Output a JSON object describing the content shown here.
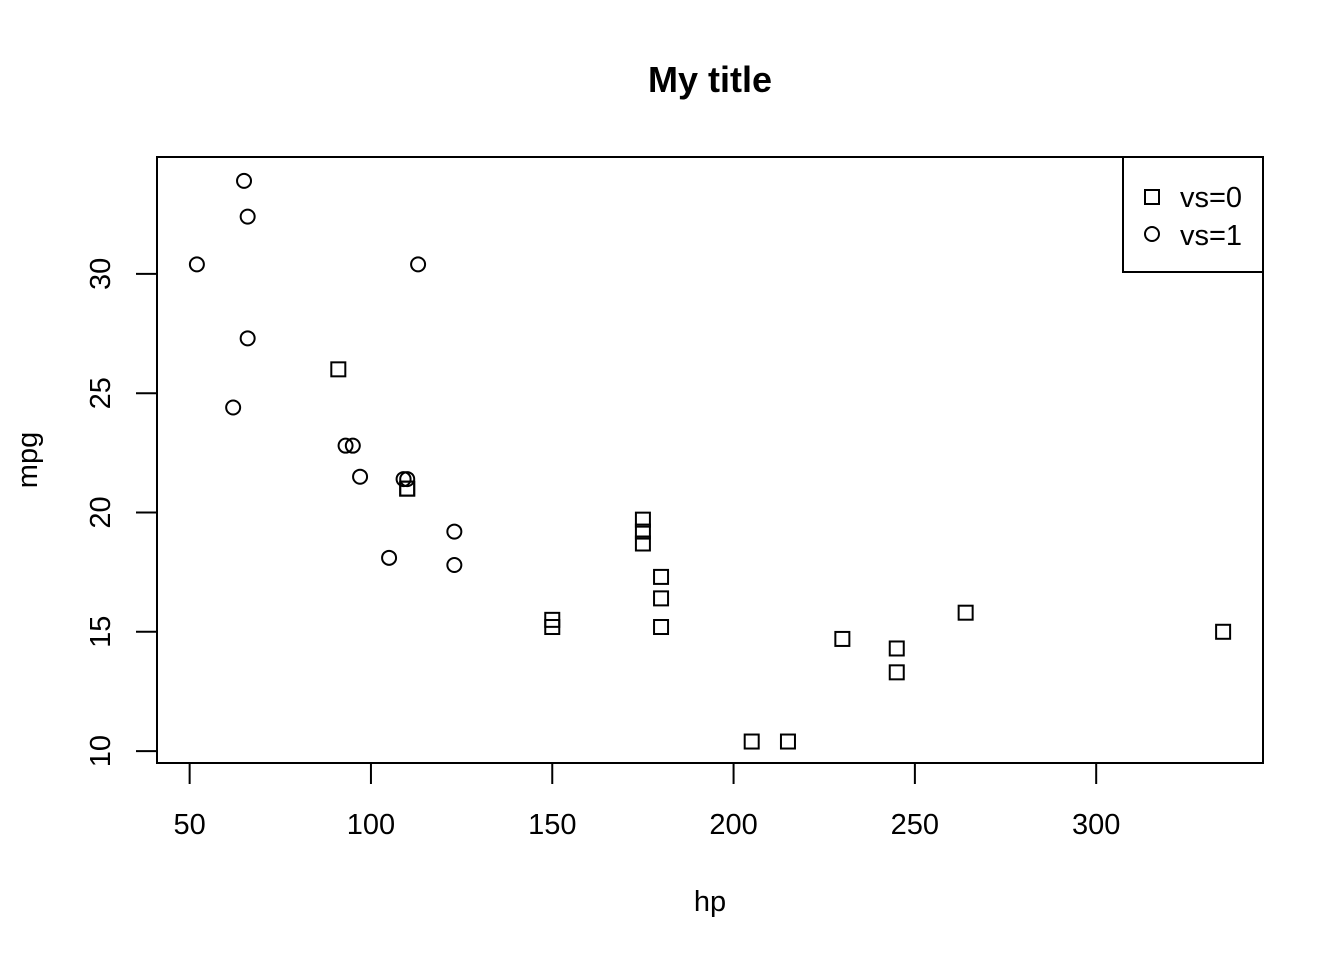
{
  "chart_data": {
    "type": "scatter",
    "title": "My title",
    "xlabel": "hp",
    "ylabel": "mpg",
    "xlim": [
      41,
      346
    ],
    "ylim": [
      9.5,
      34.9
    ],
    "x_ticks": [
      50,
      100,
      150,
      200,
      250,
      300
    ],
    "y_ticks": [
      10,
      15,
      20,
      25,
      30
    ],
    "legend": {
      "placement": "top-right",
      "entries": [
        {
          "label": "vs=0",
          "marker": "square"
        },
        {
          "label": "vs=1",
          "marker": "circle"
        }
      ]
    },
    "series": [
      {
        "name": "vs=0",
        "marker": "square",
        "points": [
          {
            "x": 91,
            "y": 26.0
          },
          {
            "x": 110,
            "y": 21.0
          },
          {
            "x": 110,
            "y": 21.0
          },
          {
            "x": 150,
            "y": 15.5
          },
          {
            "x": 150,
            "y": 15.2
          },
          {
            "x": 175,
            "y": 19.7
          },
          {
            "x": 175,
            "y": 19.2
          },
          {
            "x": 175,
            "y": 18.7
          },
          {
            "x": 180,
            "y": 17.3
          },
          {
            "x": 180,
            "y": 16.4
          },
          {
            "x": 180,
            "y": 15.2
          },
          {
            "x": 205,
            "y": 10.4
          },
          {
            "x": 215,
            "y": 10.4
          },
          {
            "x": 230,
            "y": 14.7
          },
          {
            "x": 245,
            "y": 14.3
          },
          {
            "x": 245,
            "y": 13.3
          },
          {
            "x": 264,
            "y": 15.8
          },
          {
            "x": 335,
            "y": 15.0
          }
        ]
      },
      {
        "name": "vs=1",
        "marker": "circle",
        "points": [
          {
            "x": 52,
            "y": 30.4
          },
          {
            "x": 62,
            "y": 24.4
          },
          {
            "x": 65,
            "y": 33.9
          },
          {
            "x": 66,
            "y": 32.4
          },
          {
            "x": 66,
            "y": 27.3
          },
          {
            "x": 93,
            "y": 22.8
          },
          {
            "x": 95,
            "y": 22.8
          },
          {
            "x": 97,
            "y": 21.5
          },
          {
            "x": 105,
            "y": 18.1
          },
          {
            "x": 109,
            "y": 21.4
          },
          {
            "x": 110,
            "y": 21.4
          },
          {
            "x": 113,
            "y": 30.4
          },
          {
            "x": 123,
            "y": 19.2
          },
          {
            "x": 123,
            "y": 17.8
          }
        ]
      }
    ]
  }
}
